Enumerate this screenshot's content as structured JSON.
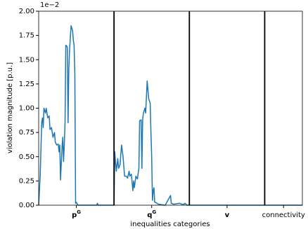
{
  "chart_data": {
    "type": "line",
    "y_label": "violation magnitude [p.u.]",
    "x_label": "inequalities categories",
    "y_offset_label": "1e−2",
    "categories": [
      {
        "text": "p",
        "sup": "G"
      },
      {
        "text": "q",
        "sup": "G"
      },
      {
        "text": "v"
      },
      {
        "text": "connectivity"
      }
    ],
    "separators": [
      100,
      200,
      300
    ],
    "xlim": [
      0,
      350
    ],
    "ylim": [
      0,
      2.0
    ],
    "yticks": [
      {
        "value": 0,
        "label": "0.00"
      },
      {
        "value": 0.25,
        "label": "0.25"
      },
      {
        "value": 0.5,
        "label": "0.50"
      },
      {
        "value": 0.75,
        "label": "0.75"
      },
      {
        "value": 1.0,
        "label": "1.00"
      },
      {
        "value": 1.25,
        "label": "1.25"
      },
      {
        "value": 1.5,
        "label": "1.50"
      },
      {
        "value": 1.75,
        "label": "1.75"
      },
      {
        "value": 2.0,
        "label": "2.00"
      }
    ],
    "series": [
      {
        "color": "#1f77b4",
        "x": [
          0,
          2,
          4,
          5,
          6,
          7,
          9,
          10,
          12,
          14,
          15,
          17,
          19,
          21,
          22,
          24,
          26,
          27,
          28,
          29,
          31,
          32,
          33,
          34,
          35,
          36,
          38,
          39,
          40,
          41,
          43,
          45,
          46,
          47,
          48,
          49,
          50,
          52,
          77,
          78,
          79,
          100,
          101,
          103,
          105,
          106,
          108,
          110,
          112,
          114,
          116,
          118,
          120,
          121,
          123,
          125,
          126,
          127,
          129,
          131,
          133,
          134,
          136,
          137,
          138,
          139,
          141,
          142,
          144,
          146,
          148,
          149,
          150,
          151,
          152,
          153,
          154,
          155,
          157,
          159,
          168,
          175,
          176,
          179,
          187,
          190,
          193,
          194,
          197,
          200,
          350
        ],
        "values": [
          0,
          0.3,
          0.85,
          0.9,
          0.8,
          1.0,
          0.95,
          1.0,
          0.9,
          0.92,
          0.78,
          0.8,
          0.7,
          0.75,
          0.65,
          0.62,
          0.63,
          0.55,
          0.62,
          0.26,
          0.6,
          0.7,
          0.45,
          0.62,
          0.85,
          1.65,
          1.63,
          0.85,
          1.4,
          1.6,
          1.85,
          1.8,
          1.7,
          1.65,
          1.35,
          0.02,
          0.03,
          0,
          0,
          0.02,
          0,
          0,
          0.55,
          0.35,
          0.48,
          0.38,
          0.42,
          0.62,
          0.5,
          0.3,
          0.3,
          0.28,
          0.35,
          0.3,
          0.32,
          0.15,
          0.25,
          0.18,
          0.3,
          0.27,
          0.38,
          0.87,
          0.88,
          0.38,
          0.88,
          0.95,
          1.0,
          0.95,
          1.28,
          1.1,
          1.05,
          0.75,
          0.5,
          0.05,
          0.15,
          0.18,
          0.03,
          0.03,
          0.02,
          0.01,
          0,
          0.1,
          0.02,
          0.01,
          0.02,
          0.01,
          0.01,
          0.02,
          0,
          0,
          0
        ]
      }
    ]
  }
}
